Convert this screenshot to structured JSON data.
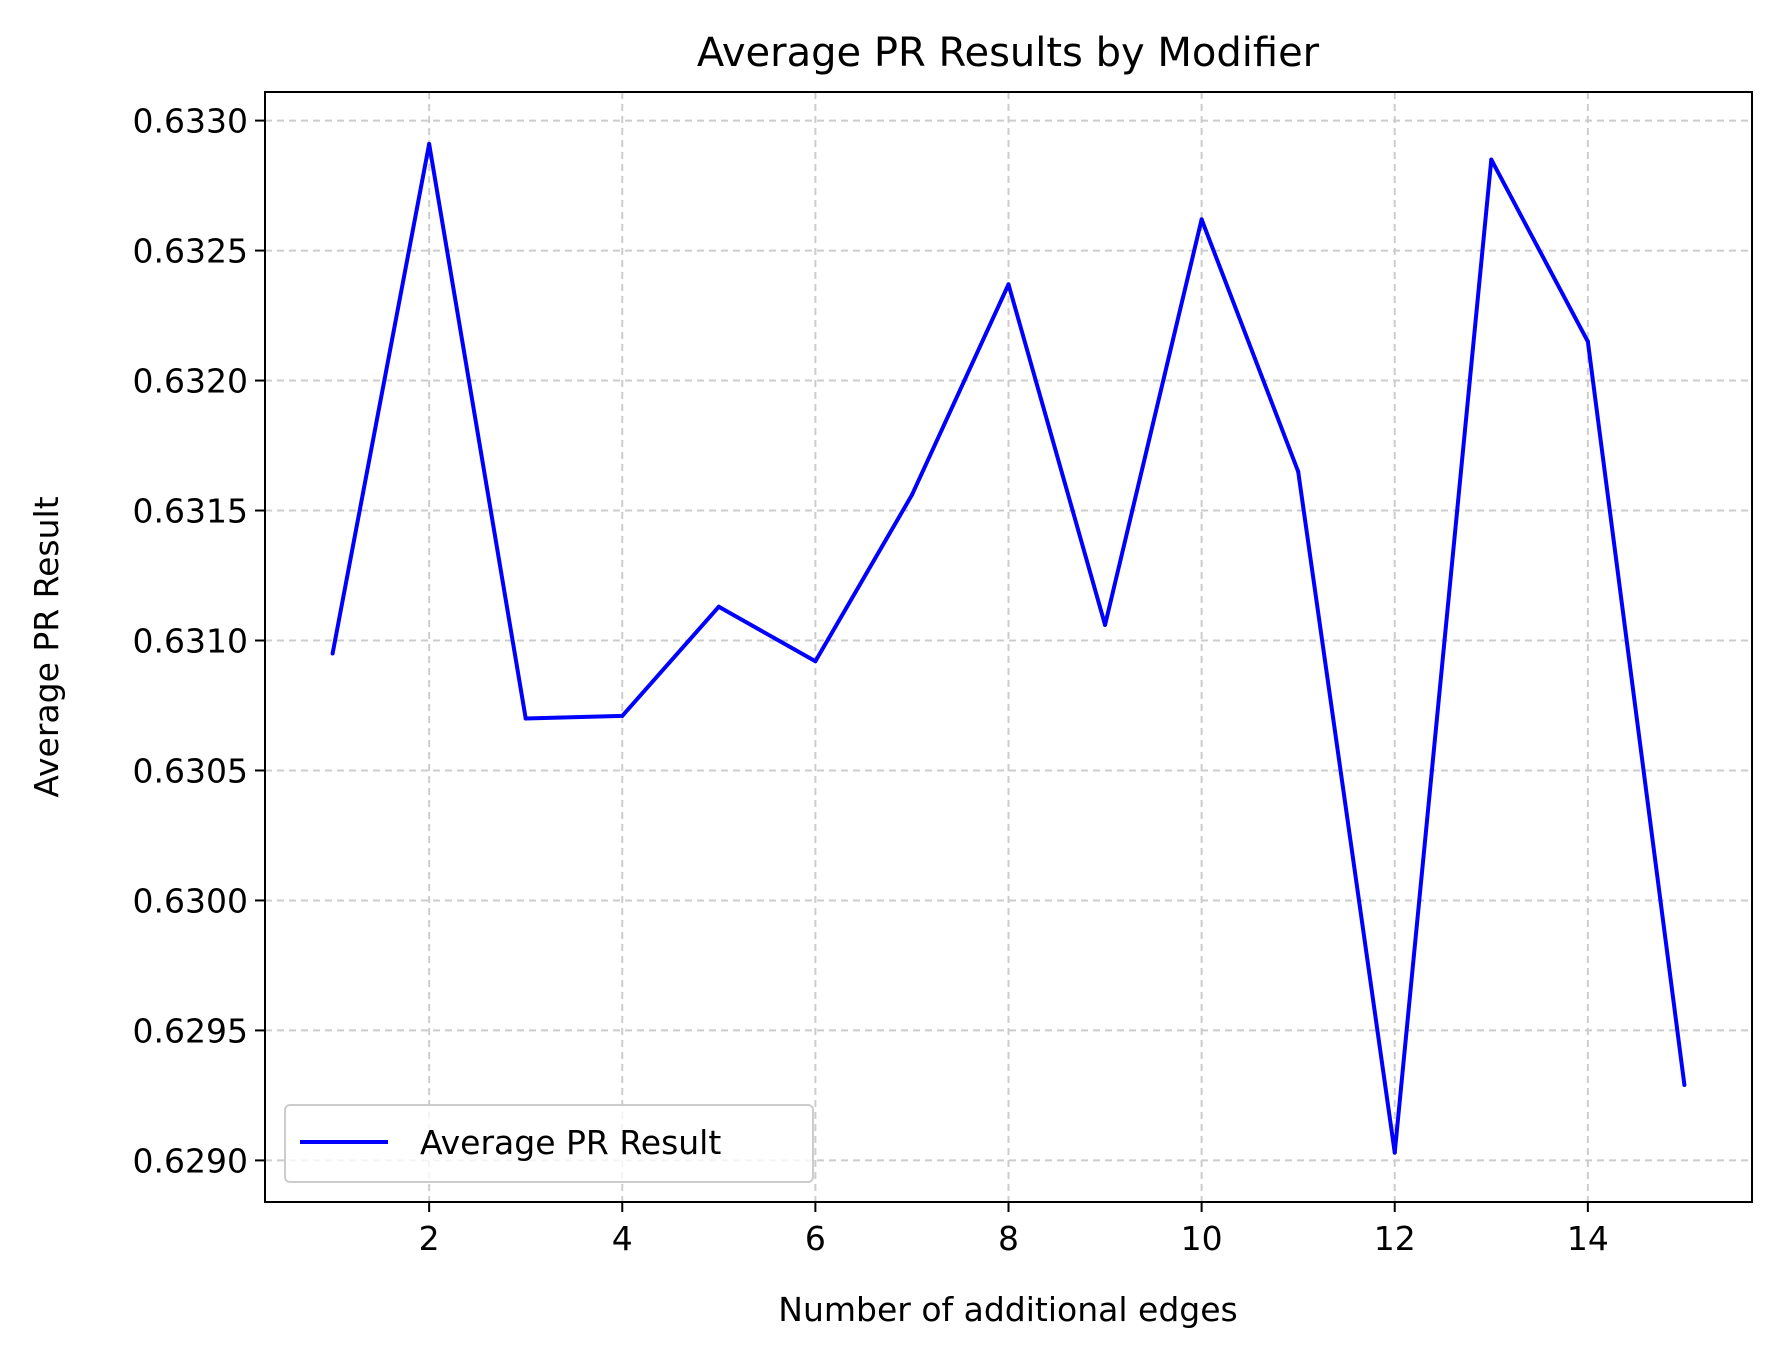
{
  "chart_data": {
    "type": "line",
    "title": "Average PR Results by Modifier",
    "xlabel": "Number of additional edges",
    "ylabel": "Average PR Result",
    "x": [
      1,
      2,
      3,
      4,
      5,
      6,
      7,
      8,
      9,
      10,
      11,
      12,
      13,
      14,
      15
    ],
    "series": [
      {
        "name": "Average PR Result",
        "color": "#0000ff",
        "values": [
          0.63095,
          0.63291,
          0.6307,
          0.63071,
          0.63113,
          0.63092,
          0.63156,
          0.63237,
          0.63106,
          0.63262,
          0.63165,
          0.62903,
          0.63285,
          0.63215,
          0.62929
        ]
      }
    ],
    "xlim": [
      0.3,
      15.7
    ],
    "ylim": [
      0.62884,
      0.63311
    ],
    "xticks": [
      2,
      4,
      6,
      8,
      10,
      12,
      14
    ],
    "xtick_labels": [
      "2",
      "4",
      "6",
      "8",
      "10",
      "12",
      "14"
    ],
    "yticks": [
      0.629,
      0.6295,
      0.63,
      0.6305,
      0.631,
      0.6315,
      0.632,
      0.6325,
      0.633
    ],
    "ytick_labels": [
      "0.6290",
      "0.6295",
      "0.6300",
      "0.6305",
      "0.6310",
      "0.6315",
      "0.6320",
      "0.6325",
      "0.6330"
    ],
    "grid": true,
    "grid_style": "dashed",
    "grid_color": "#cccccc",
    "legend_position": "lower-left"
  }
}
